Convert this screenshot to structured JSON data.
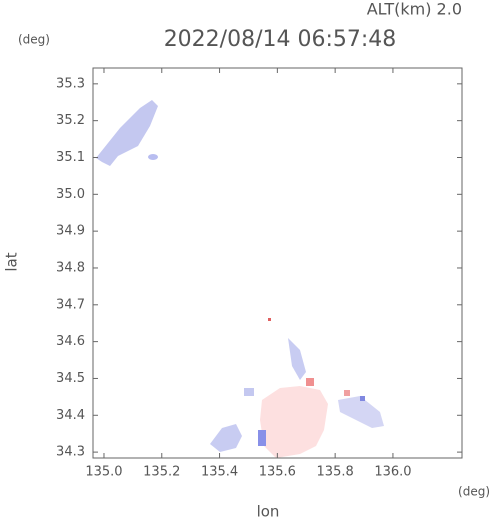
{
  "chart_data": {
    "type": "map",
    "title": "2022/08/14 06:57:48",
    "subtitle": "ALT(km) 2.0",
    "y_unit": "(deg)",
    "x_unit": "(deg)",
    "xlabel": "lon",
    "ylabel": "lat",
    "xlim": [
      134.962,
      136.239
    ],
    "ylim": [
      34.284,
      35.343
    ],
    "xticks": [
      {
        "value": 135,
        "label": "135.0"
      },
      135.2,
      135.4,
      135.6,
      135.8,
      {
        "value": 136,
        "label": "136.0"
      }
    ],
    "yticks": [
      34.3,
      34.4,
      34.5,
      34.6,
      34.7,
      34.8,
      34.9,
      {
        "value": 35,
        "label": "35.0"
      },
      35.1,
      35.2,
      35.3
    ]
  }
}
